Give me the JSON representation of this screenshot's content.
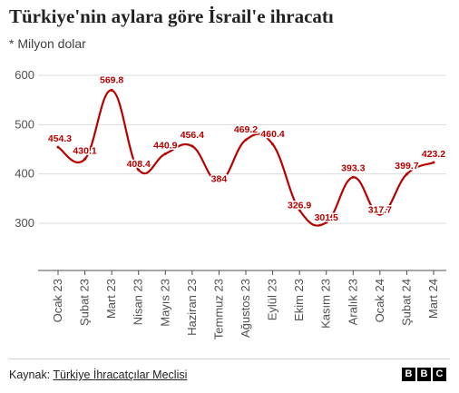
{
  "header": {
    "title": "Türkiye'nin aylara göre İsrail'e ihracatı",
    "subtitle": "* Milyon dolar"
  },
  "footer": {
    "source_prefix": "Kaynak:",
    "source_name": "Türkiye İhracatçılar Meclisi",
    "logo_letters": [
      "B",
      "B",
      "C"
    ]
  },
  "chart_data": {
    "type": "line",
    "title": "Türkiye'nin aylara göre İsrail'e ihracatı",
    "subtitle": "* Milyon dolar",
    "categories": [
      "Ocak 23",
      "Şubat 23",
      "Mart 23",
      "Nisan 23",
      "Mayıs 23",
      "Haziran 23",
      "Temmuz 23",
      "Ağustos 23",
      "Eylül 23",
      "Ekim 23",
      "Kasım 23",
      "Aralık 23",
      "Ocak 24",
      "Şubat 24",
      "Mart 24"
    ],
    "values": [
      454.3,
      430.1,
      569.8,
      408.4,
      440.9,
      456.4,
      384,
      469.2,
      460.4,
      326.9,
      301.5,
      393.3,
      317.7,
      399.7,
      423.2
    ],
    "data_labels": [
      "454.3",
      "430.1",
      "569.8",
      "408.4",
      "440.9",
      "456.4",
      "384",
      "469.2",
      "460.4",
      "326.9",
      "301.5",
      "393.3",
      "317.7",
      "399.7",
      "423.2"
    ],
    "yticks": [
      300,
      400,
      500,
      600
    ],
    "ytick_labels": [
      "300",
      "400",
      "500",
      "600"
    ],
    "ylim": [
      200,
      600
    ],
    "grid": true,
    "line_color": "#b80000",
    "label_color": "#b80000"
  }
}
